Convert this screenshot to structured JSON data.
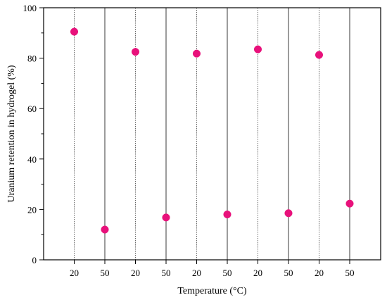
{
  "chart_data": {
    "type": "scatter",
    "xlabel": "Temperature (°C)",
    "ylabel": "Uranium retention in hydrogel (%)",
    "ylim": [
      0,
      100
    ],
    "yticks": [
      0,
      20,
      40,
      60,
      80,
      100
    ],
    "categories": [
      "20",
      "50",
      "20",
      "50",
      "20",
      "50",
      "20",
      "50",
      "20",
      "50"
    ],
    "values": [
      90.5,
      12.0,
      82.5,
      16.8,
      81.8,
      18.0,
      83.5,
      18.5,
      81.3,
      22.3
    ],
    "marker_color": "#e8117b",
    "grid": "vertical lines at each category (dotted at 20, solid at 50)"
  }
}
